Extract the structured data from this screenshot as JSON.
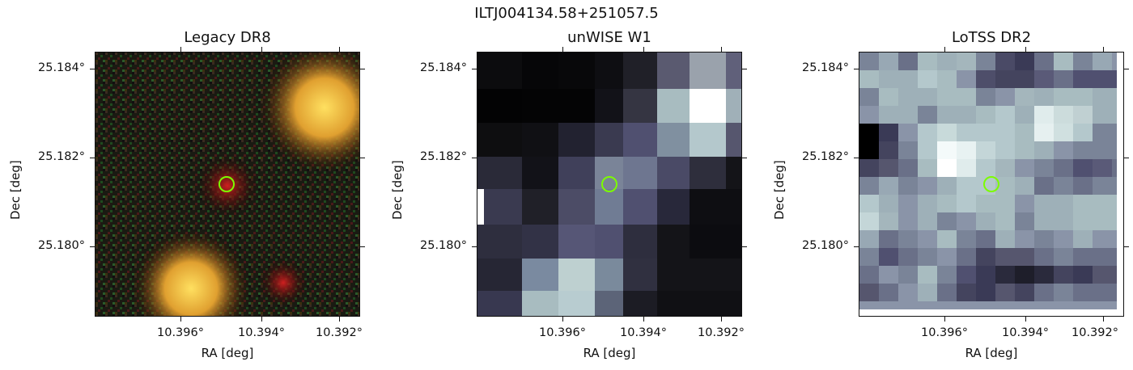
{
  "title": "ILTJ004134.58+251057.5",
  "panels": [
    {
      "title": "Legacy DR8",
      "xlabel": "RA [deg]",
      "ylabel": "Dec [deg]"
    },
    {
      "title": "unWISE W1",
      "xlabel": "RA [deg]",
      "ylabel": "Dec [deg]"
    },
    {
      "title": "LoTSS DR2",
      "xlabel": "RA [deg]",
      "ylabel": "Dec [deg]"
    }
  ],
  "yticks": [
    "25.184°",
    "25.182°",
    "25.180°"
  ],
  "xticks": [
    "10.396°",
    "10.394°",
    "10.392°"
  ],
  "marker_color": "#7CFC00"
}
